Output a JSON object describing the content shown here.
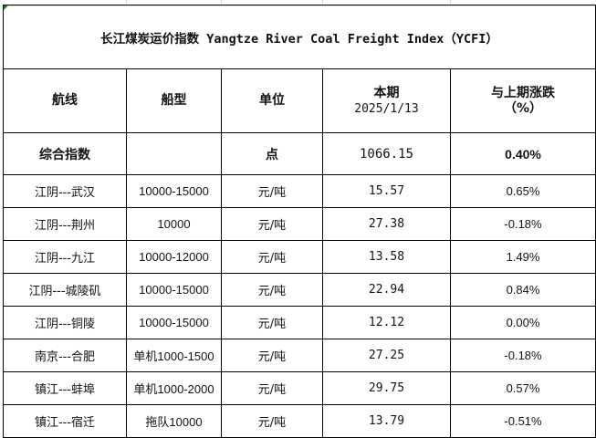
{
  "title": {
    "cn": "长江煤炭运价指数",
    "en": " Yangtze River Coal Freight Index（YCFI）"
  },
  "headers": {
    "route": "航线",
    "ship_type": "船型",
    "unit": "单位",
    "current_label": "本期",
    "current_date": "2025/1/13",
    "change_label": "与上期涨跌",
    "change_unit": "（%）"
  },
  "composite": {
    "route": "综合指数",
    "ship_type": "",
    "unit": "点",
    "value": "1066.15",
    "change": "0.40%"
  },
  "rows": [
    {
      "route": "江阴---武汉",
      "ship_type": "10000-15000",
      "unit": "元/吨",
      "value": "15.57",
      "change": "0.65%"
    },
    {
      "route": "江阴---荆州",
      "ship_type": "10000",
      "unit": "元/吨",
      "value": "27.38",
      "change": "-0.18%"
    },
    {
      "route": "江阴---九江",
      "ship_type": "10000-12000",
      "unit": "元/吨",
      "value": "13.58",
      "change": "1.49%"
    },
    {
      "route": "江阴---城陵矶",
      "ship_type": "10000-15000",
      "unit": "元/吨",
      "value": "22.94",
      "change": "0.84%"
    },
    {
      "route": "江阴---铜陵",
      "ship_type": "10000-15000",
      "unit": "元/吨",
      "value": "12.12",
      "change": "0.00%"
    },
    {
      "route": "南京---合肥",
      "ship_type": "单机1000-1500",
      "unit": "元/吨",
      "value": "27.25",
      "change": "-0.18%"
    },
    {
      "route": "镇江---蚌埠",
      "ship_type": "单机1000-2000",
      "unit": "元/吨",
      "value": "29.75",
      "change": "0.57%"
    },
    {
      "route": "镇江---宿迁",
      "ship_type": "拖队10000",
      "unit": "元/吨",
      "value": "13.79",
      "change": "-0.51%"
    }
  ]
}
